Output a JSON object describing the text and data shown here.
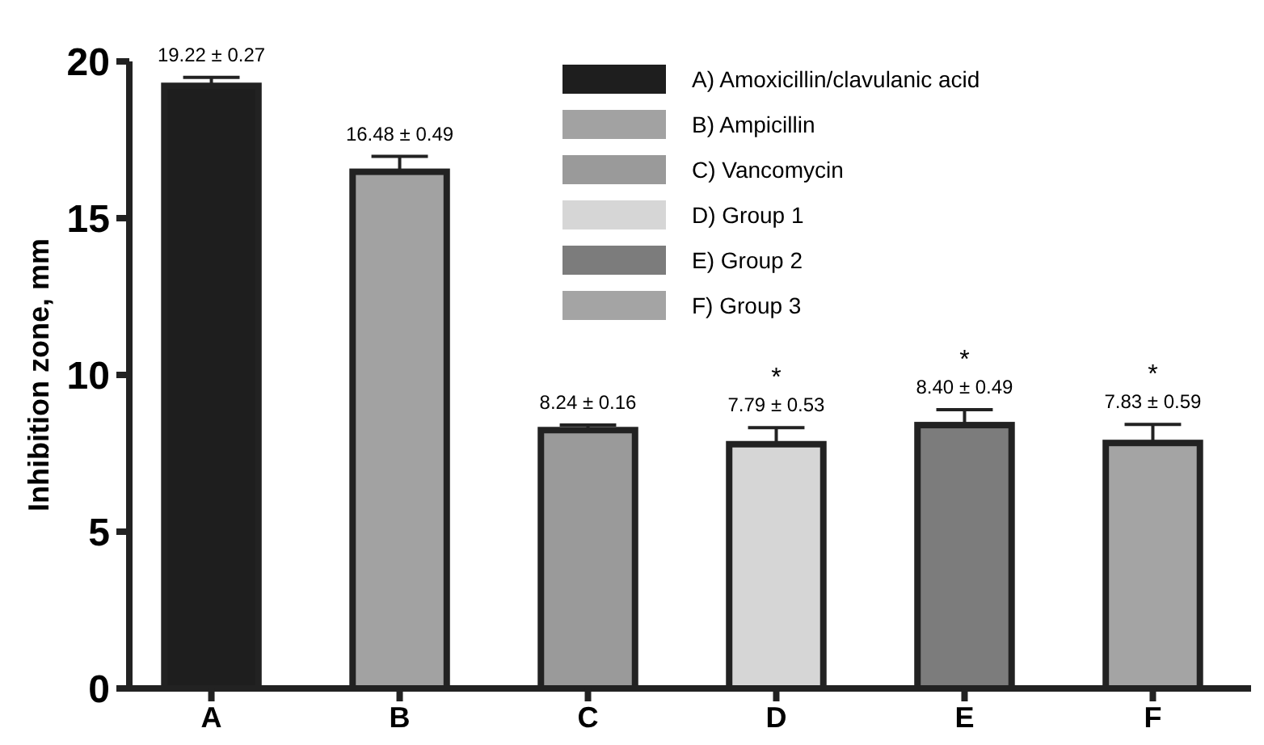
{
  "chart_data": {
    "type": "bar",
    "ylabel": "Inhibition zone, mm",
    "categories": [
      "A",
      "B",
      "C",
      "D",
      "E",
      "F"
    ],
    "ylim": [
      0,
      20
    ],
    "yticks": [
      0,
      5,
      10,
      15,
      20
    ],
    "grid": false,
    "legend": "top right",
    "series": [
      {
        "name": "A) Amoxicillin/clavulanic acid",
        "color": "#1e1e1e",
        "values": [
          19.22,
          null,
          null,
          null,
          null,
          null
        ],
        "errors": [
          0.27,
          null,
          null,
          null,
          null,
          null
        ],
        "value_labels": [
          "19.22 ± 0.27",
          null,
          null,
          null,
          null,
          null
        ]
      },
      {
        "name": "B) Ampicillin",
        "color": "#a2a2a2",
        "values": [
          null,
          16.48,
          null,
          null,
          null,
          null
        ],
        "errors": [
          null,
          0.49,
          null,
          null,
          null,
          null
        ],
        "value_labels": [
          null,
          "16.48 ± 0.49",
          null,
          null,
          null,
          null
        ]
      },
      {
        "name": "C) Vancomycin",
        "color": "#9a9a9a",
        "values": [
          null,
          null,
          8.24,
          null,
          null,
          null
        ],
        "errors": [
          null,
          null,
          0.16,
          null,
          null,
          null
        ],
        "value_labels": [
          null,
          null,
          "8.24 ± 0.16",
          null,
          null,
          null
        ]
      },
      {
        "name": "D) Group 1",
        "color": "#d6d6d6",
        "values": [
          null,
          null,
          null,
          7.79,
          null,
          null
        ],
        "errors": [
          null,
          null,
          null,
          0.53,
          null,
          null
        ],
        "value_labels": [
          null,
          null,
          null,
          "7.79 ± 0.53",
          null,
          null
        ]
      },
      {
        "name": "E) Group 2",
        "color": "#7c7c7c",
        "values": [
          null,
          null,
          null,
          null,
          8.4,
          null
        ],
        "errors": [
          null,
          null,
          null,
          null,
          0.49,
          null
        ],
        "value_labels": [
          null,
          null,
          null,
          null,
          "8.40 ± 0.49",
          null
        ]
      },
      {
        "name": "F) Group 3",
        "color": "#a4a4a4",
        "values": [
          null,
          null,
          null,
          null,
          null,
          7.83
        ],
        "errors": [
          null,
          null,
          null,
          null,
          null,
          0.59
        ],
        "value_labels": [
          null,
          null,
          null,
          null,
          null,
          "7.83 ± 0.59"
        ]
      }
    ],
    "annotations": [
      {
        "text": "*",
        "x": "D",
        "y": 7.79
      },
      {
        "text": "*",
        "x": "E",
        "y": 8.4
      },
      {
        "text": "*",
        "x": "F",
        "y": 7.83
      }
    ]
  }
}
